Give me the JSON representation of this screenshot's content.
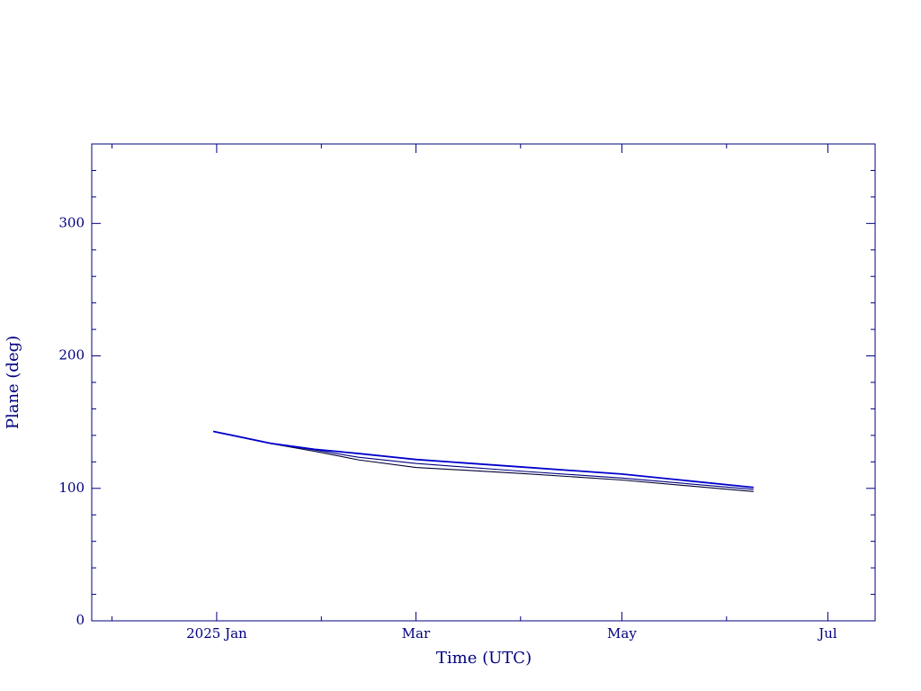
{
  "chart_data": {
    "type": "line",
    "x_label": "Time (UTC)",
    "y_label": "Plane (deg)",
    "x": [
      -1,
      16,
      29,
      42,
      59,
      90,
      120,
      159
    ],
    "series": [
      {
        "color": "#0000cc",
        "values": [
          143,
          134,
          129.5,
          126.3,
          121.8,
          116.2,
          110.8,
          100.7
        ]
      },
      {
        "color": "#000080",
        "values": [
          143,
          134,
          129,
          123.5,
          118.8,
          113,
          107.8,
          99.2
        ]
      },
      {
        "color": "#000033",
        "values": [
          143,
          133.8,
          128,
          121.5,
          115.8,
          111.3,
          106.3,
          97.6
        ]
      }
    ],
    "xlim": [
      -37,
      195
    ],
    "xticks": [
      {
        "value": 0,
        "label": "2025 Jan"
      },
      {
        "value": 59,
        "label": "Mar"
      },
      {
        "value": 120,
        "label": "May"
      },
      {
        "value": 181,
        "label": "Jul"
      }
    ],
    "xminorticks": [
      -31,
      31,
      90,
      151
    ],
    "ylim": [
      0,
      360
    ],
    "yticks": [
      0,
      100,
      200,
      300
    ],
    "yminorticks": [
      20,
      40,
      60,
      80,
      120,
      140,
      160,
      180,
      220,
      240,
      260,
      280,
      320,
      340
    ],
    "grid": false
  }
}
